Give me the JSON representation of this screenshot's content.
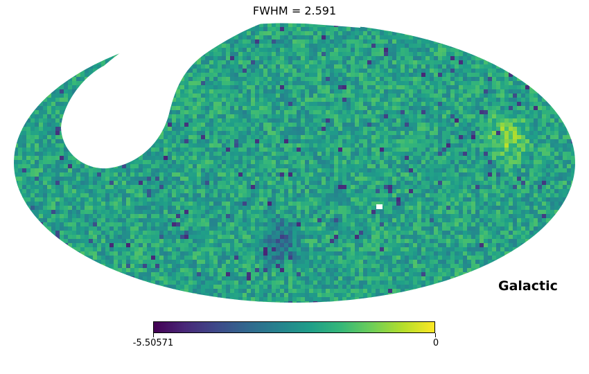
{
  "title": "FWHM = 2.591",
  "projection": "mollweide",
  "coord_label": "Galactic",
  "colormap": "viridis",
  "colormap_stops": [
    "#440154",
    "#482878",
    "#3e4989",
    "#31688e",
    "#26828e",
    "#1f9e89",
    "#35b779",
    "#6ece58",
    "#b5de2b",
    "#fde725"
  ],
  "colorbar": {
    "min_label": "-5.50571",
    "max_label": "0",
    "min": -5.50571,
    "max": 0
  },
  "map_features": {
    "background_tone": "teal-green",
    "masked_region": "upper-left lobe (no data, white)",
    "bright_spot": "yellow patch on the right side",
    "dark_patch": "purple patch below center"
  }
}
